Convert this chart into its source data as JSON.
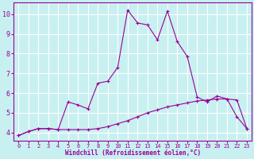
{
  "xlabel": "Windchill (Refroidissement éolien,°C)",
  "background_color": "#c8f0f0",
  "grid_color": "#ffffff",
  "line_color": "#990099",
  "xlim": [
    -0.5,
    23.5
  ],
  "ylim": [
    3.6,
    10.6
  ],
  "yticks": [
    4,
    5,
    6,
    7,
    8,
    9,
    10
  ],
  "xticks": [
    0,
    1,
    2,
    3,
    4,
    5,
    6,
    7,
    8,
    9,
    10,
    11,
    12,
    13,
    14,
    15,
    16,
    17,
    18,
    19,
    20,
    21,
    22,
    23
  ],
  "line1_x": [
    0,
    1,
    2,
    3,
    4,
    5,
    6,
    7,
    8,
    9,
    10,
    11,
    12,
    13,
    14,
    15,
    16,
    17,
    18,
    19,
    20,
    21,
    22,
    23
  ],
  "line1_y": [
    3.85,
    4.05,
    4.2,
    4.2,
    4.15,
    5.55,
    5.4,
    5.2,
    6.5,
    6.6,
    7.3,
    10.2,
    9.55,
    9.45,
    8.7,
    10.15,
    8.6,
    7.85,
    5.8,
    5.55,
    5.85,
    5.7,
    4.8,
    4.2
  ],
  "line2_x": [
    0,
    1,
    2,
    3,
    4,
    5,
    6,
    7,
    8,
    9,
    10,
    11,
    12,
    13,
    14,
    15,
    16,
    17,
    18,
    19,
    20,
    21,
    22,
    23
  ],
  "line2_y": [
    3.85,
    4.05,
    4.2,
    4.2,
    4.15,
    4.15,
    4.15,
    4.15,
    4.2,
    4.3,
    4.45,
    4.6,
    4.8,
    5.0,
    5.15,
    5.3,
    5.4,
    5.5,
    5.6,
    5.65,
    5.7,
    5.7,
    5.65,
    4.2
  ]
}
